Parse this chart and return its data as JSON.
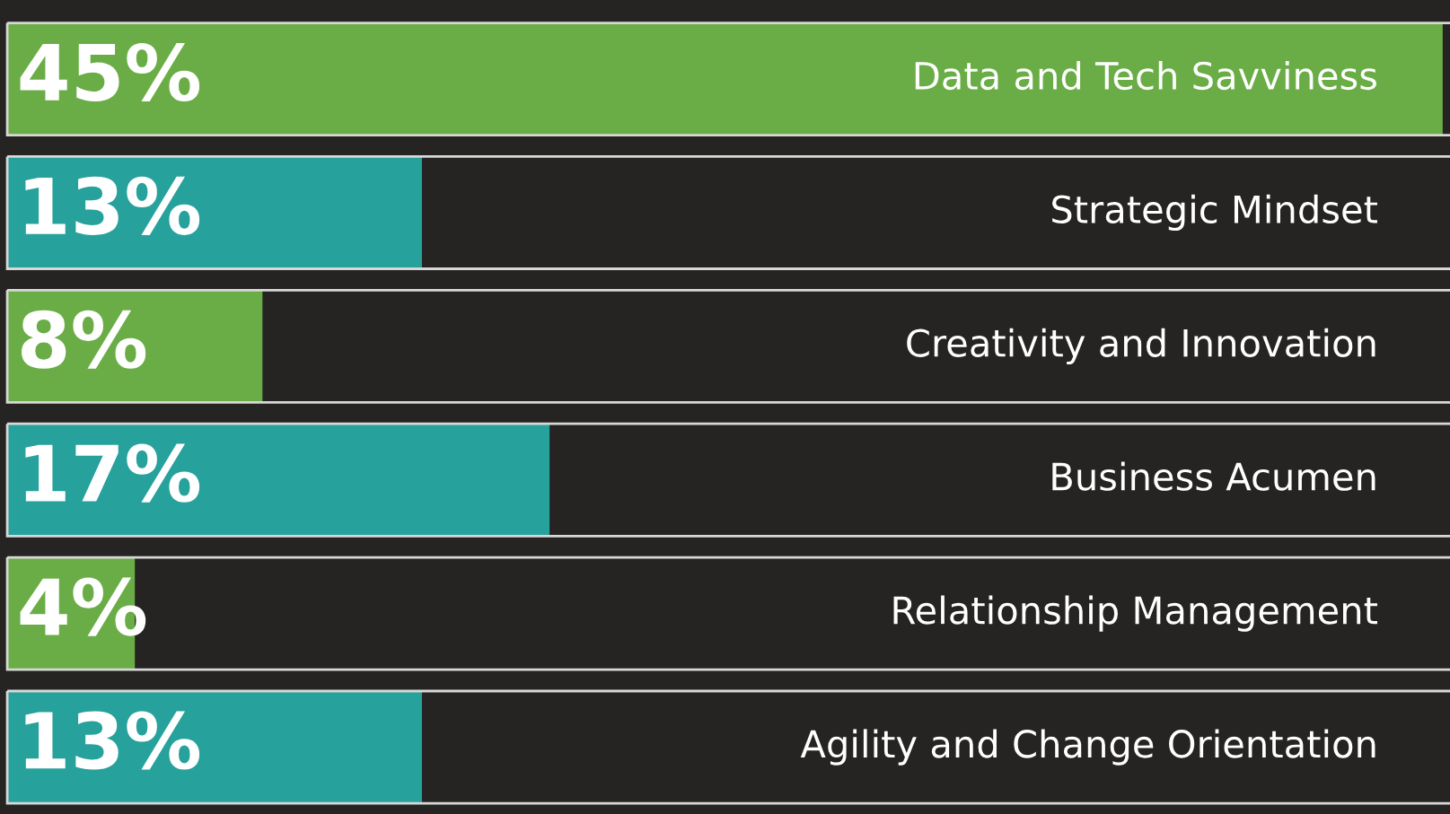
{
  "chart_data": {
    "type": "bar",
    "orientation": "horizontal",
    "categories": [
      "Data and Tech Savviness",
      "Strategic Mindset",
      "Creativity and Innovation",
      "Business Acumen",
      "Relationship Management",
      "Agility and Change Orientation"
    ],
    "values": [
      45,
      13,
      8,
      17,
      4,
      13
    ],
    "colors": [
      "#6aad46",
      "#27a19c",
      "#6aad46",
      "#27a19c",
      "#6aad46",
      "#27a19c"
    ],
    "value_labels": [
      "45%",
      "13%",
      "8%",
      "17%",
      "4%",
      "13%"
    ],
    "xlim": [
      0,
      45
    ]
  }
}
